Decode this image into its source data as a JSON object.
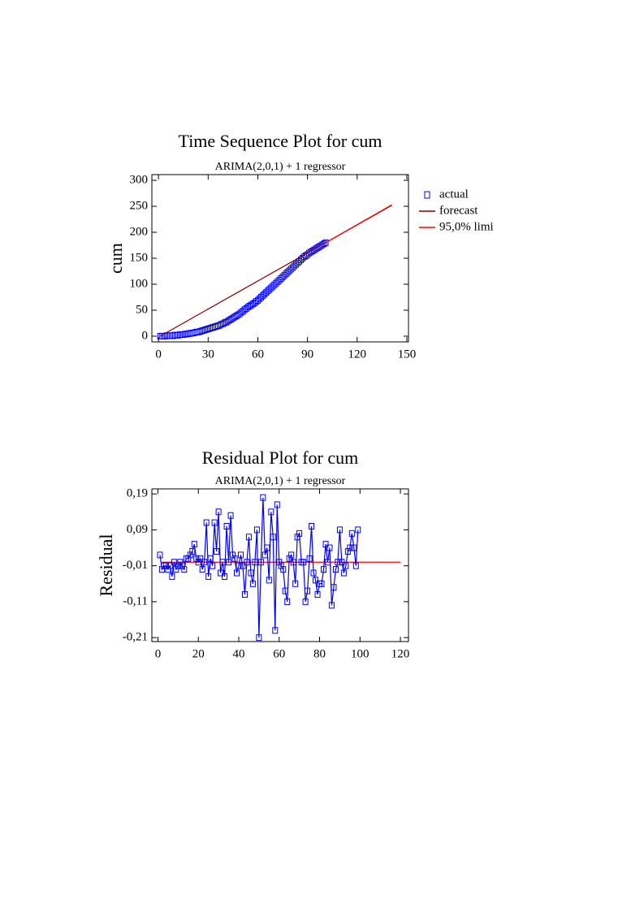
{
  "chart_data": [
    {
      "type": "line",
      "title": "Time Sequence Plot for cum",
      "subtitle": "ARIMA(2,0,1) + 1 regressor",
      "y_label": "cum",
      "xlim": [
        -4,
        151
      ],
      "xticks": [
        0,
        30,
        60,
        90,
        120,
        150
      ],
      "ylim": [
        -11,
        311
      ],
      "yticks": [
        0,
        50,
        100,
        150,
        200,
        250,
        300
      ],
      "legend": "right",
      "series": [
        {
          "name": "actual",
          "color": "#0000ff",
          "marker": "square",
          "line": false,
          "x": [
            1,
            2,
            3,
            4,
            5,
            6,
            7,
            8,
            9,
            10,
            11,
            12,
            13,
            14,
            15,
            16,
            17,
            18,
            19,
            20,
            21,
            22,
            23,
            24,
            25,
            26,
            27,
            28,
            29,
            30,
            31,
            32,
            33,
            34,
            35,
            36,
            37,
            38,
            39,
            40,
            41,
            42,
            43,
            44,
            45,
            46,
            47,
            48,
            49,
            50,
            51,
            52,
            53,
            54,
            55,
            56,
            57,
            58,
            59,
            60,
            61,
            62,
            63,
            64,
            65,
            66,
            67,
            68,
            69,
            70,
            71,
            72,
            73,
            74,
            75,
            76,
            77,
            78,
            79,
            80,
            81,
            82,
            83,
            84,
            85,
            86,
            87,
            88,
            89,
            90,
            91,
            92,
            93,
            94,
            95,
            96,
            97,
            98,
            99,
            100,
            101
          ],
          "values": [
            0,
            0,
            0,
            0,
            1,
            1,
            1,
            1,
            1,
            2,
            2,
            2,
            3,
            3,
            3,
            4,
            4,
            5,
            5,
            6,
            6,
            7,
            8,
            8,
            9,
            10,
            11,
            12,
            13,
            14,
            15,
            16,
            17,
            18,
            19,
            20,
            21,
            23,
            24,
            26,
            27,
            29,
            31,
            33,
            35,
            37,
            39,
            41,
            43,
            46,
            48,
            51,
            53,
            56,
            58,
            60,
            62,
            64,
            67,
            69,
            72,
            75,
            78,
            81,
            84,
            87,
            90,
            93,
            96,
            99,
            102,
            105,
            108,
            111,
            114,
            117,
            120,
            123,
            126,
            129,
            132,
            135,
            138,
            141,
            144,
            147,
            150,
            153,
            155,
            157,
            160,
            162,
            164,
            166,
            168,
            170,
            172,
            174,
            176,
            178,
            180
          ]
        },
        {
          "name": "forecast",
          "color": "#8b0000",
          "marker": null,
          "line": true,
          "x": [
            1,
            101,
            141
          ],
          "values": [
            0,
            180,
            252
          ]
        },
        {
          "name": "95,0% limi",
          "color": "#ff0000",
          "marker": null,
          "line": true,
          "x": [
            101,
            141
          ],
          "values": [
            180,
            253
          ]
        }
      ]
    },
    {
      "type": "line",
      "title": "Residual Plot for cum",
      "subtitle": "ARIMA(2,0,1) + 1 regressor",
      "y_label": "Residual",
      "xlim": [
        -3,
        124
      ],
      "xticks": [
        0,
        20,
        40,
        60,
        80,
        100,
        120
      ],
      "ylim": [
        -0.221,
        0.204
      ],
      "yticks": [
        {
          "value": 0.19,
          "label": "0,19"
        },
        {
          "value": 0.09,
          "label": "0,09"
        },
        {
          "value": -0.01,
          "label": "-0,01"
        },
        {
          "value": -0.11,
          "label": "-0,11"
        },
        {
          "value": -0.21,
          "label": "-0,21"
        }
      ],
      "reference_line": {
        "color": "#ff0000",
        "value": 0,
        "x": [
          2,
          120
        ]
      },
      "series": [
        {
          "color": "#0000ff",
          "marker": "square",
          "line": true,
          "x": [
            1,
            2,
            3,
            4,
            5,
            6,
            7,
            8,
            9,
            10,
            11,
            12,
            13,
            14,
            15,
            16,
            17,
            18,
            19,
            20,
            21,
            22,
            23,
            24,
            25,
            26,
            27,
            28,
            29,
            30,
            31,
            32,
            33,
            34,
            35,
            36,
            37,
            38,
            39,
            40,
            41,
            42,
            43,
            44,
            45,
            46,
            47,
            48,
            49,
            50,
            51,
            52,
            53,
            54,
            55,
            56,
            57,
            58,
            59,
            60,
            61,
            62,
            63,
            64,
            65,
            66,
            67,
            68,
            69,
            70,
            71,
            72,
            73,
            74,
            75,
            76,
            77,
            78,
            79,
            80,
            81,
            82,
            83,
            84,
            85,
            86,
            87,
            88,
            89,
            90,
            91,
            92,
            93,
            94,
            95,
            96,
            97,
            98,
            99
          ],
          "values": [
            0.02,
            -0.02,
            -0.01,
            -0.01,
            -0.02,
            -0.01,
            -0.04,
            0.0,
            -0.02,
            -0.01,
            0.0,
            -0.01,
            -0.02,
            0.01,
            0.01,
            0.02,
            0.03,
            0.05,
            0.01,
            0.0,
            0.01,
            -0.02,
            0.0,
            0.11,
            -0.04,
            0.01,
            -0.01,
            0.11,
            0.03,
            0.14,
            -0.03,
            0.0,
            -0.04,
            0.1,
            0.0,
            0.13,
            0.02,
            0.01,
            -0.03,
            -0.01,
            0.02,
            -0.01,
            -0.09,
            0.0,
            0.07,
            -0.03,
            -0.06,
            0.0,
            0.09,
            -0.21,
            0.0,
            0.18,
            0.02,
            0.04,
            -0.05,
            0.14,
            0.07,
            -0.19,
            0.16,
            0.0,
            -0.01,
            -0.02,
            -0.08,
            -0.11,
            0.01,
            0.02,
            0.0,
            -0.06,
            0.07,
            0.08,
            0.0,
            0.0,
            -0.11,
            -0.08,
            0.01,
            0.1,
            -0.03,
            -0.05,
            -0.09,
            -0.06,
            -0.06,
            -0.02,
            0.05,
            0.0,
            0.04,
            -0.12,
            -0.07,
            -0.02,
            0.0,
            0.09,
            0.0,
            -0.03,
            -0.01,
            0.03,
            0.04,
            0.08,
            0.04,
            -0.01,
            0.09
          ]
        }
      ]
    }
  ]
}
